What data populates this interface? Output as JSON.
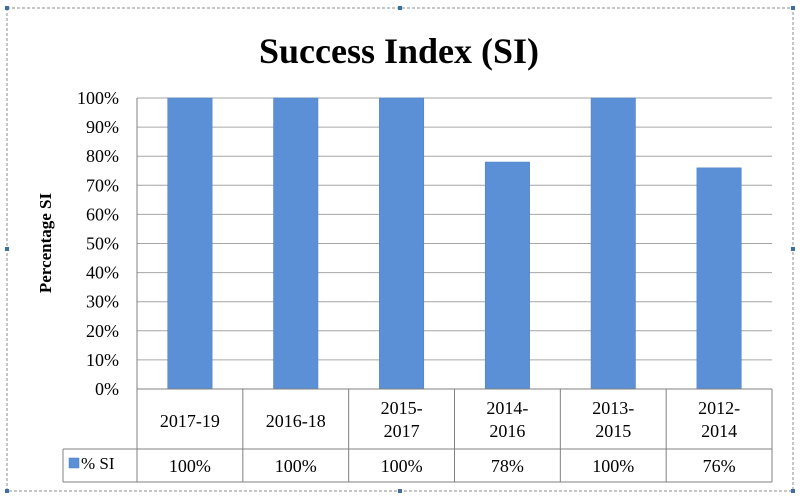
{
  "colors": {
    "bar": "#5b8fd6",
    "bar_edge": "#4a7cc4",
    "grid": "#a6a6a6",
    "axis": "#808080",
    "text": "#000000",
    "frame": "#8c8c8c",
    "handle": "#3b6ea5"
  },
  "chart_data": {
    "type": "bar",
    "title": "Success Index (SI)",
    "ylabel": "Percentage SI",
    "xlabel": "",
    "ylim": [
      0,
      100
    ],
    "ytick_step": 10,
    "ytick_labels": [
      "0%",
      "10%",
      "20%",
      "30%",
      "40%",
      "50%",
      "60%",
      "70%",
      "80%",
      "90%",
      "100%"
    ],
    "categories": [
      "2017-19",
      "2016-18",
      "2015-2017",
      "2014-2016",
      "2013-2015",
      "2012-2014"
    ],
    "category_label_lines": [
      [
        "2017-19"
      ],
      [
        "2016-18"
      ],
      [
        "2015-",
        "2017"
      ],
      [
        "2014-",
        "2016"
      ],
      [
        "2013-",
        "2015"
      ],
      [
        "2012-",
        "2014"
      ]
    ],
    "grid": true,
    "legend_position": "data-table",
    "series": [
      {
        "name": "% SI",
        "values": [
          100,
          100,
          100,
          78,
          100,
          76
        ],
        "value_labels": [
          "100%",
          "100%",
          "100%",
          "78%",
          "100%",
          "76%"
        ]
      }
    ]
  }
}
